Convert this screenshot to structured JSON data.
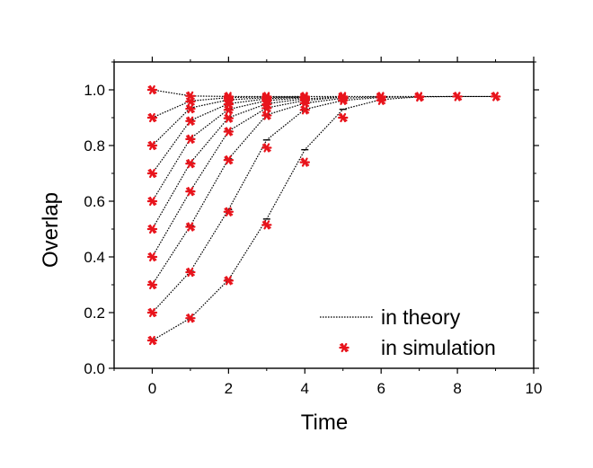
{
  "chart_data": {
    "type": "line",
    "xlabel": "Time",
    "ylabel": "Overlap",
    "xlim": [
      -1,
      10
    ],
    "ylim": [
      0,
      1.1
    ],
    "xticks": [
      0,
      2,
      4,
      6,
      8,
      10
    ],
    "xtick_labels": [
      "0",
      "2",
      "4",
      "6",
      "8",
      "10"
    ],
    "yticks": [
      0.0,
      0.2,
      0.4,
      0.6,
      0.8,
      1.0
    ],
    "ytick_labels": [
      "0.0",
      "0.2",
      "0.4",
      "0.6",
      "0.8",
      "1.0"
    ],
    "grid": false,
    "legend_position": "bottom-right",
    "legend": {
      "theory_label": "in theory",
      "simulation_label": "in simulation"
    },
    "colors": {
      "theory_line": "#000000",
      "simulation_marker": "#e8141c"
    },
    "series": [
      {
        "x": [
          0,
          1,
          2,
          3,
          4,
          5,
          6,
          7,
          8,
          9
        ],
        "theory": [
          1.0,
          0.978,
          0.976,
          0.976,
          0.976,
          0.976,
          0.976,
          0.976,
          0.976,
          0.976
        ],
        "simulation": [
          1.0,
          0.978,
          0.976,
          0.976,
          0.976,
          0.976,
          0.976,
          0.976,
          0.976,
          0.976
        ]
      },
      {
        "x": [
          0,
          1,
          2,
          3,
          4
        ],
        "theory": [
          0.9,
          0.96,
          0.972,
          0.975,
          0.976
        ],
        "simulation": [
          0.9,
          0.958,
          0.97,
          0.974,
          0.975
        ]
      },
      {
        "x": [
          0,
          1,
          2,
          3,
          4
        ],
        "theory": [
          0.8,
          0.935,
          0.964,
          0.972,
          0.975
        ],
        "simulation": [
          0.8,
          0.932,
          0.963,
          0.971,
          0.975
        ]
      },
      {
        "x": [
          0,
          1,
          2,
          3,
          4
        ],
        "theory": [
          0.7,
          0.89,
          0.95,
          0.968,
          0.974
        ],
        "simulation": [
          0.7,
          0.888,
          0.948,
          0.967,
          0.974
        ]
      },
      {
        "x": [
          0,
          1,
          2,
          3,
          4
        ],
        "theory": [
          0.6,
          0.825,
          0.93,
          0.961,
          0.972
        ],
        "simulation": [
          0.6,
          0.823,
          0.928,
          0.96,
          0.972
        ]
      },
      {
        "x": [
          0,
          1,
          2,
          3,
          4,
          5
        ],
        "theory": [
          0.5,
          0.738,
          0.9,
          0.95,
          0.968,
          0.975
        ],
        "simulation": [
          0.5,
          0.735,
          0.898,
          0.948,
          0.968,
          0.975
        ]
      },
      {
        "x": [
          0,
          1,
          2,
          3,
          4,
          5
        ],
        "theory": [
          0.4,
          0.637,
          0.852,
          0.935,
          0.962,
          0.974
        ],
        "simulation": [
          0.4,
          0.635,
          0.85,
          0.934,
          0.962,
          0.974
        ]
      },
      {
        "x": [
          0,
          1,
          2,
          3,
          4,
          5,
          6
        ],
        "theory": [
          0.3,
          0.512,
          0.752,
          0.91,
          0.952,
          0.97,
          0.975
        ],
        "simulation": [
          0.3,
          0.508,
          0.748,
          0.908,
          0.952,
          0.97,
          0.975
        ]
      },
      {
        "x": [
          0,
          1,
          2,
          3,
          4,
          5,
          6,
          7
        ],
        "theory": [
          0.2,
          0.348,
          0.57,
          0.82,
          0.93,
          0.962,
          0.973,
          0.975
        ],
        "simulation": [
          0.2,
          0.345,
          0.562,
          0.792,
          0.928,
          0.962,
          0.973,
          0.975
        ]
      },
      {
        "x": [
          0,
          1,
          2,
          3,
          4,
          5,
          6,
          7,
          8,
          9
        ],
        "theory": [
          0.1,
          0.18,
          0.318,
          0.536,
          0.785,
          0.93,
          0.965,
          0.975,
          0.976,
          0.976
        ],
        "simulation": [
          0.1,
          0.18,
          0.315,
          0.515,
          0.74,
          0.9,
          0.962,
          0.974,
          0.976,
          0.976
        ]
      }
    ]
  }
}
